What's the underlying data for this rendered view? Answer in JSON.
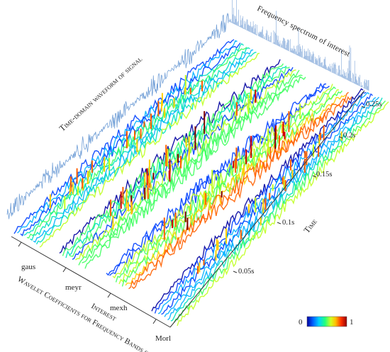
{
  "figure": {
    "title_time_domain": "Time-domain waveform of signal",
    "title_frequency": "Frequency spectrum  of interest",
    "wavelet_axis_label_line1": "Wavelet Coefficients for Frequency Bands of",
    "wavelet_axis_label_line2": "Interest",
    "time_axis_label": "Time",
    "wavelets": [
      "gaus",
      "meyr",
      "mexh",
      "Morl"
    ],
    "time_ticks": [
      "0.05s",
      "0.1s",
      "0.15s",
      "0.2s",
      "0.25s"
    ],
    "colorbar": {
      "min_label": "0",
      "max_label": "1"
    },
    "colors": {
      "waveform": "#5b8fd0",
      "spectrum": "#7fa6d8",
      "colormap": [
        "#0000a0",
        "#0040ff",
        "#00b0ff",
        "#00e0c0",
        "#40ff60",
        "#c0ff20",
        "#ffd000",
        "#ff6000",
        "#d00000",
        "#800000"
      ]
    }
  }
}
